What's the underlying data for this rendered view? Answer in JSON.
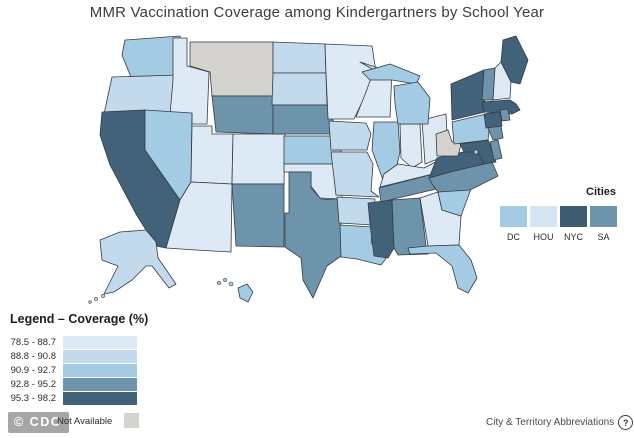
{
  "title": "MMR Vaccination Coverage among Kindergartners by School Year",
  "coverage_legend": {
    "heading": "Legend – Coverage (%)",
    "classes": [
      {
        "id": "cat1",
        "label": "78.5 - 88.7",
        "color": "#dde9f4"
      },
      {
        "id": "cat2",
        "label": "88.8 - 90.8",
        "color": "#c3daed"
      },
      {
        "id": "cat3",
        "label": "90.9 - 92.7",
        "color": "#a3cbe4"
      },
      {
        "id": "cat4",
        "label": "92.8 - 95.2",
        "color": "#6e94ac"
      },
      {
        "id": "cat5",
        "label": "95.3 - 98.2",
        "color": "#42627a"
      },
      {
        "id": "na",
        "label": "Not Available",
        "color": "#d4d3d0"
      }
    ]
  },
  "cities_legend": {
    "heading": "Cities",
    "items": [
      {
        "label": "DC",
        "color": "#a3cbe4"
      },
      {
        "label": "HOU",
        "color": "#d7e4f1"
      },
      {
        "label": "NYC",
        "color": "#3e5c70"
      },
      {
        "label": "SA",
        "color": "#6e94ac"
      }
    ]
  },
  "map": {
    "border_color": "#333b44",
    "states": {
      "WA": "cat3",
      "OR": "cat2",
      "CA": "cat5",
      "NV": "cat3",
      "ID": "cat1",
      "UT": "cat1",
      "AZ": "cat1",
      "MT": "na",
      "WY": "cat4",
      "CO": "cat1",
      "NM": "cat4",
      "ND": "cat2",
      "SD": "cat2",
      "NE": "cat4",
      "KS": "cat3",
      "OK": "cat1",
      "TX": "cat4",
      "MN": "cat1",
      "IA": "cat2",
      "MO": "cat2",
      "AR": "cat2",
      "LA": "cat3",
      "WI": "cat1",
      "IL": "cat3",
      "MI": "cat3",
      "IN": "cat1",
      "OH": "cat1",
      "KY": "cat1",
      "TN": "cat4",
      "MS": "cat5",
      "AL": "cat4",
      "GA": "cat1",
      "FL": "cat3",
      "SC": "cat3",
      "NC": "cat4",
      "VA": "cat5",
      "WV": "na",
      "MD": "cat5",
      "DE": "cat4",
      "DC": "cat3",
      "PA": "cat3",
      "NJ": "cat4",
      "NY": "cat5",
      "VT": "cat4",
      "NH": "cat1",
      "ME": "cat5",
      "MA": "cat5",
      "CT": "cat5",
      "RI": "cat4",
      "AK": "cat2",
      "HI": "cat3"
    }
  },
  "footer": {
    "cdc_badge": "© CDC",
    "abbreviations_label": "City & Territory Abbreviations",
    "help_icon": "question-mark-circle-icon"
  }
}
